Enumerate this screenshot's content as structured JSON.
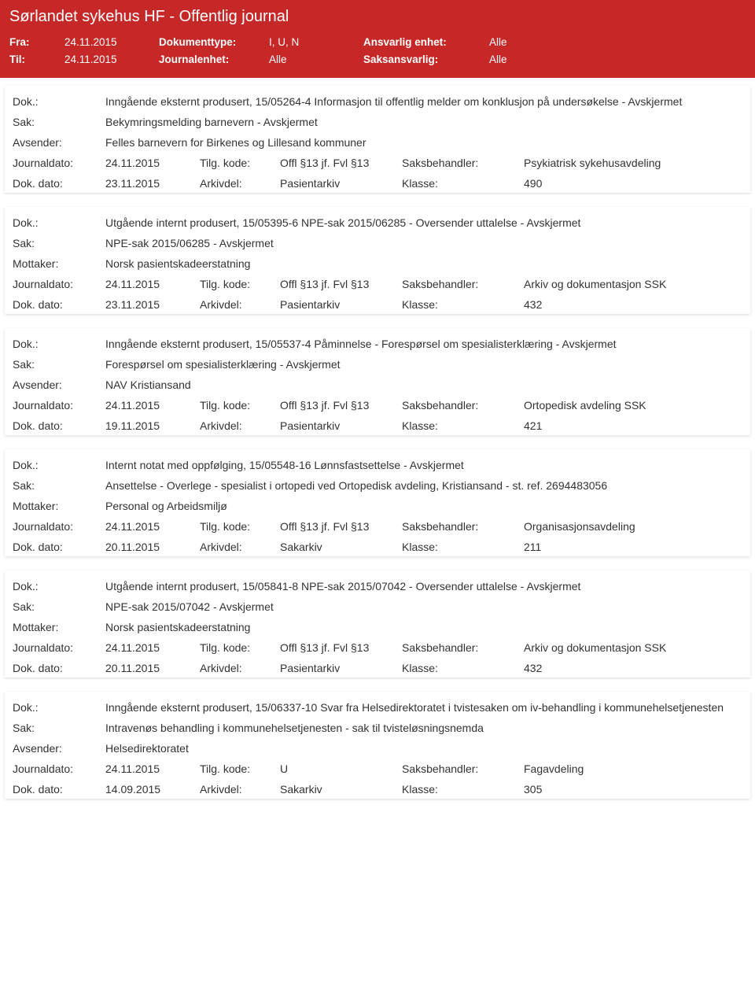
{
  "header": {
    "title": "Sørlandet sykehus HF - Offentlig journal",
    "fra_label": "Fra:",
    "fra_value": "24.11.2015",
    "til_label": "Til:",
    "til_value": "24.11.2015",
    "doktype_label": "Dokumenttype:",
    "doktype_value": "I, U, N",
    "journalenhet_label": "Journalenhet:",
    "journalenhet_value": "Alle",
    "ansvarlig_label": "Ansvarlig enhet:",
    "ansvarlig_value": "Alle",
    "saksansvarlig_label": "Saksansvarlig:",
    "saksansvarlig_value": "Alle"
  },
  "labels": {
    "dok": "Dok.:",
    "sak": "Sak:",
    "avsender": "Avsender:",
    "mottaker": "Mottaker:",
    "journaldato": "Journaldato:",
    "dokdato": "Dok. dato:",
    "tilg": "Tilg. kode:",
    "arkivdel": "Arkivdel:",
    "saksbehandler": "Saksbehandler:",
    "klasse": "Klasse:"
  },
  "entries": [
    {
      "dok": "Inngående eksternt produsert, 15/05264-4 Informasjon til offentlig melder om konklusjon på undersøkelse - Avskjermet",
      "sak": "Bekymringsmelding barnevern - Avskjermet",
      "party_label_key": "avsender",
      "party": "Felles barnevern for Birkenes og Lillesand kommuner",
      "journaldato": "24.11.2015",
      "tilg": "Offl §13 jf. Fvl §13",
      "saksbehandler": "Psykiatrisk sykehusavdeling",
      "dokdato": "23.11.2015",
      "arkivdel": "Pasientarkiv",
      "klasse": "490"
    },
    {
      "dok": "Utgående internt produsert, 15/05395-6 NPE-sak 2015/06285 - Oversender uttalelse - Avskjermet",
      "sak": "NPE-sak 2015/06285 - Avskjermet",
      "party_label_key": "mottaker",
      "party": "Norsk pasientskadeerstatning",
      "journaldato": "24.11.2015",
      "tilg": "Offl §13 jf. Fvl §13",
      "saksbehandler": "Arkiv og dokumentasjon SSK",
      "dokdato": "23.11.2015",
      "arkivdel": "Pasientarkiv",
      "klasse": "432"
    },
    {
      "dok": "Inngående eksternt produsert, 15/05537-4 Påminnelse - Forespørsel om spesialisterklæring - Avskjermet",
      "sak": "Forespørsel om spesialisterklæring - Avskjermet",
      "party_label_key": "avsender",
      "party": "NAV Kristiansand",
      "journaldato": "24.11.2015",
      "tilg": "Offl §13 jf. Fvl §13",
      "saksbehandler": "Ortopedisk avdeling SSK",
      "dokdato": "19.11.2015",
      "arkivdel": "Pasientarkiv",
      "klasse": "421"
    },
    {
      "dok": "Internt notat med oppfølging, 15/05548-16 Lønnsfastsettelse - Avskjermet",
      "sak": "Ansettelse - Overlege - spesialist i ortopedi ved Ortopedisk avdeling, Kristiansand - st. ref. 2694483056",
      "party_label_key": "mottaker",
      "party": "Personal og Arbeidsmiljø",
      "journaldato": "24.11.2015",
      "tilg": "Offl §13 jf. Fvl §13",
      "saksbehandler": "Organisasjonsavdeling",
      "dokdato": "20.11.2015",
      "arkivdel": "Sakarkiv",
      "klasse": "211"
    },
    {
      "dok": "Utgående internt produsert, 15/05841-8 NPE-sak 2015/07042 - Oversender uttalelse - Avskjermet",
      "sak": "NPE-sak 2015/07042 - Avskjermet",
      "party_label_key": "mottaker",
      "party": "Norsk pasientskadeerstatning",
      "journaldato": "24.11.2015",
      "tilg": "Offl §13 jf. Fvl §13",
      "saksbehandler": "Arkiv og dokumentasjon SSK",
      "dokdato": "20.11.2015",
      "arkivdel": "Pasientarkiv",
      "klasse": "432"
    },
    {
      "dok": "Inngående eksternt produsert, 15/06337-10 Svar fra Helsedirektoratet i tvistesaken om iv-behandling i kommunehelsetjenesten",
      "sak": "Intravenøs behandling i kommunehelsetjenesten - sak til tvisteløsningsnemda",
      "party_label_key": "avsender",
      "party": "Helsedirektoratet",
      "journaldato": "24.11.2015",
      "tilg": "U",
      "saksbehandler": "Fagavdeling",
      "dokdato": "14.09.2015",
      "arkivdel": "Sakarkiv",
      "klasse": "305"
    }
  ]
}
